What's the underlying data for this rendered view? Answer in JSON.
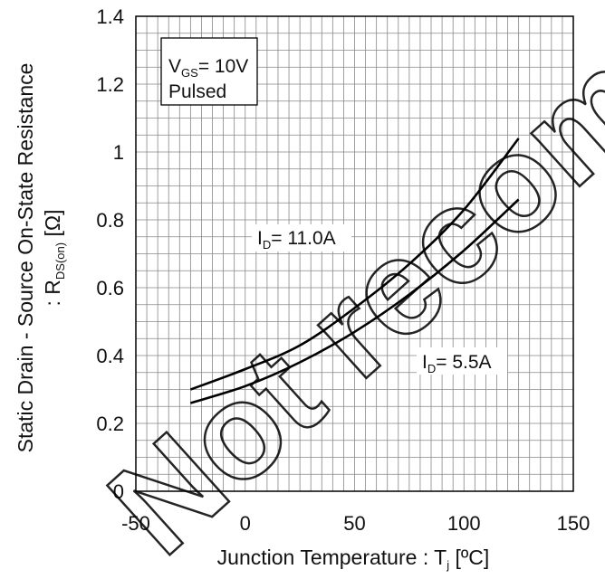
{
  "chart_data": {
    "type": "line",
    "xlabel": "Junction Temperature : Tj [ºC]",
    "xlabel_parts": {
      "main": "Junction Temperature : T",
      "sub": "j",
      "unit": " [ºC]"
    },
    "ylabel_line1": "Static Drain - Source On-State Resistance",
    "ylabel_line2": {
      "prefix": ": R",
      "sub": "DS(on)",
      "unit": " [Ω]"
    },
    "xlim": [
      -50,
      150
    ],
    "ylim": [
      0,
      1.4
    ],
    "x_ticks": [
      "-50",
      "0",
      "50",
      "100",
      "150"
    ],
    "y_ticks": [
      "0",
      "0.2",
      "0.4",
      "0.6",
      "0.8",
      "1",
      "1.2",
      "1.4"
    ],
    "grid": true,
    "conditions": {
      "line1_main": "V",
      "line1_sub": "GS",
      "line1_rest": "= 10V",
      "line2": "Pulsed"
    },
    "series": [
      {
        "name": "ID= 11.0A",
        "label_main": "I",
        "label_sub": "D",
        "label_rest": "= 11.0A",
        "x": [
          -25,
          0,
          25,
          50,
          75,
          100,
          125
        ],
        "y": [
          0.3,
          0.36,
          0.43,
          0.54,
          0.67,
          0.83,
          1.04
        ]
      },
      {
        "name": "ID= 5.5A",
        "label_main": "I",
        "label_sub": "D",
        "label_rest": "= 5.5A",
        "x": [
          -25,
          0,
          25,
          50,
          75,
          100,
          125
        ],
        "y": [
          0.26,
          0.31,
          0.38,
          0.47,
          0.58,
          0.71,
          0.86
        ]
      }
    ]
  },
  "watermark": "Not recommended for new designs"
}
